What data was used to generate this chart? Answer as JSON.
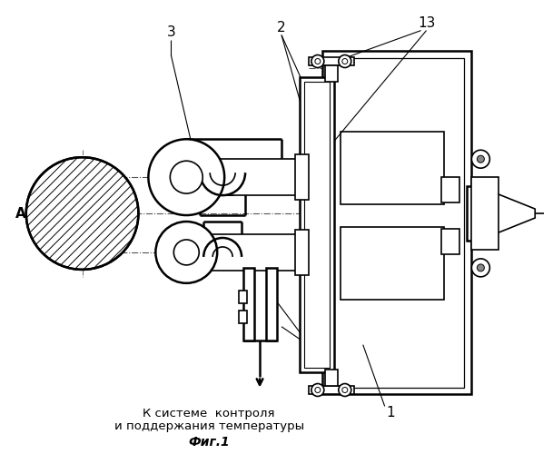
{
  "fig_label": "Фиг.1",
  "bottom_text_line1": "К системе  контроля",
  "bottom_text_line2": "и поддержания температуры",
  "label_A": "А",
  "background_color": "#ffffff",
  "line_color": "#000000"
}
